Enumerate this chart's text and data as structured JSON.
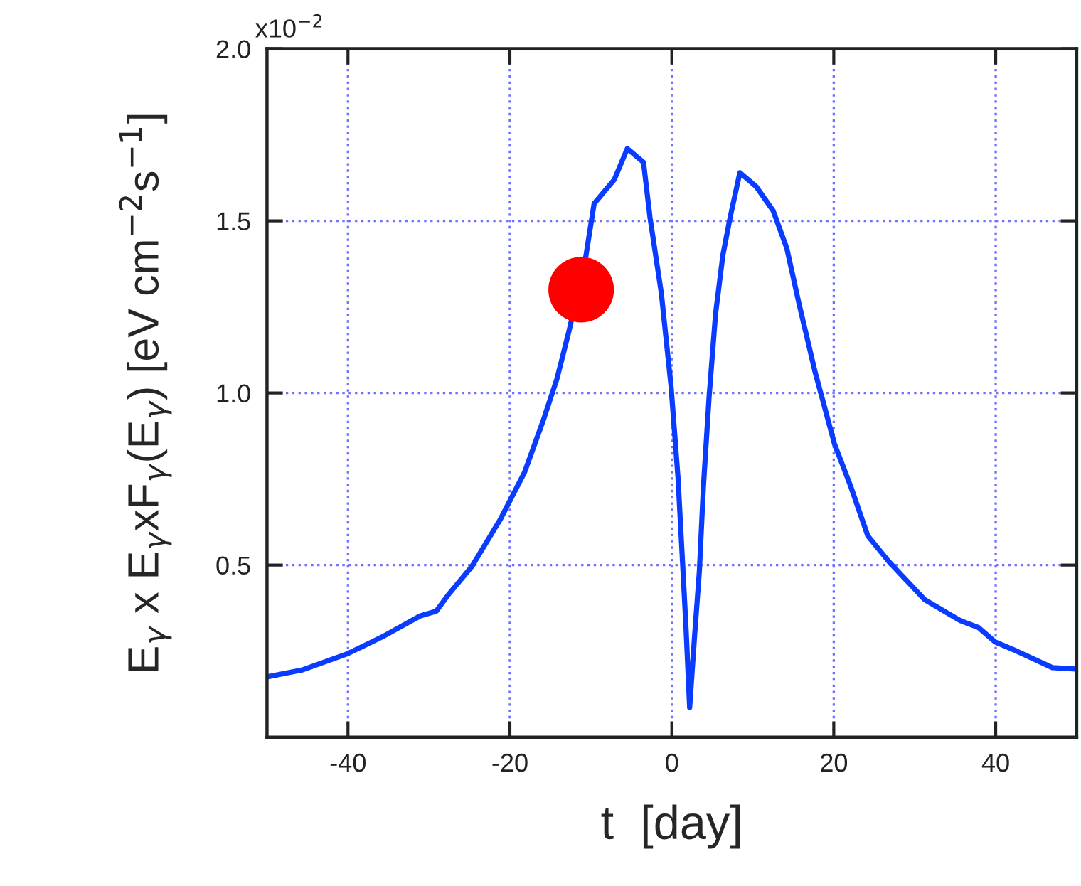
{
  "chart_data": {
    "type": "line",
    "xlabel": "t  [day]",
    "ylabel": "E$_{γ}$ x E$_{γ}$xF$_{γ}$(E$_{γ}$) [eV cm$^{−2}$s$^{−1}$]",
    "annotations": [
      "x10$^{−2}$"
    ],
    "x": [
      -50,
      -45.7,
      -40,
      -35.8,
      -31.1,
      -29.1,
      -27.6,
      -24.7,
      -21.2,
      -18.2,
      -15.9,
      -14.2,
      -12.7,
      -10.6,
      -9.6,
      -7.1,
      -5.5,
      -3.5,
      -2.7,
      -1.3,
      -0.1,
      0.76,
      1.35,
      1.75,
      2.2,
      2.8,
      3.4,
      3.9,
      4.6,
      5.4,
      6.3,
      7.2,
      8.4,
      10.4,
      12.5,
      14.2,
      15.7,
      17.7,
      20.1,
      22.1,
      24.2,
      26.8,
      31.2,
      35.6,
      37.9,
      39.9,
      42.6,
      47.0,
      49.9
    ],
    "series": [
      {
        "color": "#0a3cff",
        "values": [
          0.175,
          0.195,
          0.243,
          0.291,
          0.352,
          0.366,
          0.414,
          0.496,
          0.632,
          0.769,
          0.919,
          1.04,
          1.18,
          1.4,
          1.55,
          1.62,
          1.71,
          1.67,
          1.51,
          1.29,
          1.02,
          0.755,
          0.496,
          0.318,
          0.086,
          0.291,
          0.482,
          0.728,
          0.988,
          1.23,
          1.4,
          1.51,
          1.64,
          1.6,
          1.53,
          1.42,
          1.26,
          1.06,
          0.851,
          0.728,
          0.585,
          0.51,
          0.4,
          0.339,
          0.318,
          0.277,
          0.25,
          0.202,
          0.198
        ]
      },
      {
        "type": "scatter",
        "color": "#ff0000",
        "x": [
          -11.2
        ],
        "values": [
          1.3
        ]
      }
    ],
    "xlim": [
      -50,
      50
    ],
    "xticks": [
      -40,
      -20,
      0,
      20,
      40
    ],
    "ylim": [
      0,
      2.0
    ],
    "yticks": [
      0.5,
      {
        "value": 1.0,
        "label": "1.0"
      },
      1.5,
      {
        "value": 2.0,
        "label": "2.0"
      }
    ],
    "grid": true,
    "legend": false
  }
}
